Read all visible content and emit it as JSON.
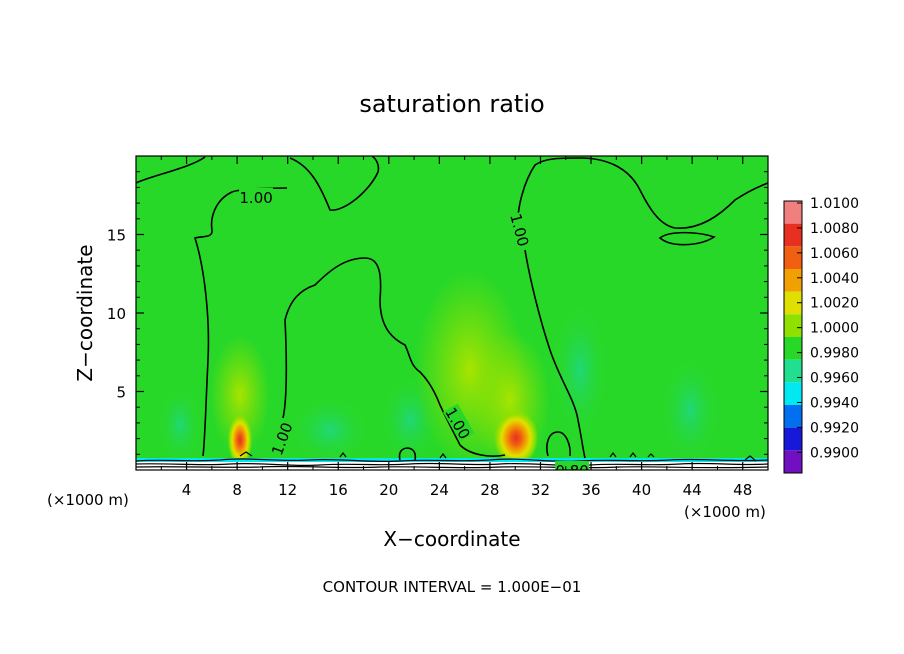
{
  "chart_data": {
    "type": "heatmap",
    "title": "saturation ratio",
    "xlabel": "X−coordinate",
    "ylabel": "Z−coordinate",
    "x_unit_left": "(×1000 m)",
    "x_unit_right": "(×1000 m)",
    "footer": "CONTOUR INTERVAL = 1.000E−01",
    "xlim": [
      0,
      50
    ],
    "ylim": [
      0,
      20
    ],
    "x_ticks": [
      4,
      8,
      12,
      16,
      20,
      24,
      28,
      32,
      36,
      40,
      44,
      48
    ],
    "x_tick_labels": [
      "4",
      "8",
      "12",
      "16",
      "20",
      "24",
      "28",
      "32",
      "36",
      "40",
      "44",
      "48"
    ],
    "y_ticks": [
      5,
      10,
      15
    ],
    "y_tick_labels": [
      "5",
      "10",
      "15"
    ],
    "background_value": 1.0,
    "colorbar": {
      "levels": [
        "1.0100",
        "1.0080",
        "1.0060",
        "1.0040",
        "1.0020",
        "1.0000",
        "0.9980",
        "0.9960",
        "0.9940",
        "0.9920",
        "0.9900"
      ],
      "colors": [
        "#f08080",
        "#e83020",
        "#f06010",
        "#f0a000",
        "#e0e000",
        "#90e000",
        "#28d828",
        "#20e090",
        "#00e8f0",
        "#0070f0",
        "#1818d8",
        "#7010c0"
      ]
    },
    "contour_labels": [
      {
        "text": "1.00",
        "x": 9.5,
        "y": 17.4
      },
      {
        "text": "1.00",
        "x": 30.4,
        "y": 15.3
      },
      {
        "text": "1.00",
        "x": 11.5,
        "y": 2.0
      },
      {
        "text": "1.00",
        "x": 25.5,
        "y": 3.0
      },
      {
        "text": "0.80",
        "x": 34.5,
        "y": 0.0
      }
    ],
    "features": [
      {
        "x": 8.2,
        "z": 1.2,
        "value": 1.008
      },
      {
        "x": 29.8,
        "z": 1.3,
        "value": 1.0085
      },
      {
        "x": 30.5,
        "z": 6.0,
        "value": 1.002
      },
      {
        "x": 8.0,
        "z": 4.0,
        "value": 1.003
      }
    ]
  }
}
